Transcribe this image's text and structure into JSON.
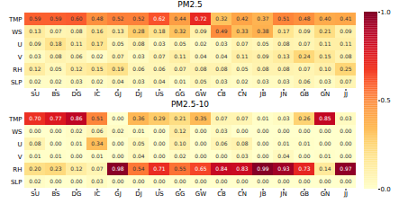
{
  "chart_data": [
    {
      "type": "heatmap",
      "title": "PM2.5",
      "x": [
        "SU",
        "BS",
        "DG",
        "IC",
        "GJ",
        "DJ",
        "US",
        "GG",
        "GW",
        "CB",
        "CN",
        "JB",
        "JN",
        "GB",
        "GN",
        "JJ"
      ],
      "y": [
        "TMP",
        "WS",
        "U",
        "V",
        "RH",
        "SLP"
      ],
      "color": "YlOrRd",
      "data_labels": true,
      "colorbar": {
        "lim": [
          0.0,
          1.0
        ],
        "ticks": [
          {
            "value": 0.0,
            "label": "0.0"
          },
          0.5,
          {
            "value": 1.0,
            "label": "1.0"
          }
        ]
      },
      "values": [
        [
          0.59,
          0.59,
          0.6,
          0.48,
          0.52,
          0.52,
          0.62,
          0.44,
          0.72,
          0.32,
          0.42,
          0.37,
          0.51,
          0.48,
          0.4,
          0.41
        ],
        [
          0.13,
          0.07,
          0.08,
          0.16,
          0.13,
          0.28,
          0.18,
          0.32,
          0.09,
          0.49,
          0.33,
          0.38,
          0.17,
          0.09,
          0.21,
          0.09
        ],
        [
          0.09,
          0.18,
          0.11,
          0.17,
          0.05,
          0.08,
          0.03,
          0.05,
          0.02,
          0.03,
          0.07,
          0.05,
          0.08,
          0.07,
          0.11,
          0.11
        ],
        [
          0.03,
          0.08,
          0.06,
          0.02,
          0.07,
          0.03,
          0.07,
          0.11,
          0.04,
          0.04,
          0.11,
          0.09,
          0.13,
          0.24,
          0.15,
          0.08
        ],
        [
          0.12,
          0.05,
          0.12,
          0.15,
          0.19,
          0.06,
          0.06,
          0.07,
          0.08,
          0.08,
          0.05,
          0.08,
          0.08,
          0.07,
          0.1,
          0.25
        ],
        [
          0.02,
          0.02,
          0.03,
          0.02,
          0.04,
          0.03,
          0.04,
          0.01,
          0.05,
          0.03,
          0.02,
          0.03,
          0.03,
          0.06,
          0.03,
          0.07
        ]
      ],
      "value_labels": [
        [
          "0.59",
          "0.59",
          "0.60",
          "0.48",
          "0.52",
          "0.52",
          "0.62",
          "0.44",
          "0.72",
          "0.32",
          "0.42",
          "0.37",
          "0.51",
          "0.48",
          "0.40",
          "0.41"
        ],
        [
          "0.13",
          "0.07",
          "0.08",
          "0.16",
          "0.13",
          "0.28",
          "0.18",
          "0.32",
          "0.09",
          "0.49",
          "0.33",
          "0.38",
          "0.17",
          "0.09",
          "0.21",
          "0.09"
        ],
        [
          "0.09",
          "0.18",
          "0.11",
          "0.17",
          "0.05",
          "0.08",
          "0.03",
          "0.05",
          "0.02",
          "0.03",
          "0.07",
          "0.05",
          "0.08",
          "0.07",
          "0.11",
          "0.11"
        ],
        [
          "0.03",
          "0.08",
          "0.06",
          "0.02",
          "0.07",
          "0.03",
          "0.07",
          "0.11",
          "0.04",
          "0.04",
          "0.11",
          "0.09",
          "0.13",
          "0.24",
          "0.15",
          "0.08"
        ],
        [
          "0.12",
          "0.05",
          "0.12",
          "0.15",
          "0.19",
          "0.06",
          "0.06",
          "0.07",
          "0.08",
          "0.08",
          "0.05",
          "0.08",
          "0.08",
          "0.07",
          "0.10",
          "0.25"
        ],
        [
          "0.02",
          "0.02",
          "0.03",
          "0.02",
          "0.04",
          "0.03",
          "0.04",
          "0.01",
          "0.05",
          "0.03",
          "0.02",
          "0.03",
          "0.03",
          "0.06",
          "0.03",
          "0.07"
        ]
      ]
    },
    {
      "type": "heatmap",
      "title": "PM2.5-10",
      "x": [
        "SU",
        "BS",
        "DG",
        "IC",
        "GJ",
        "DJ",
        "US",
        "GG",
        "GW",
        "CB",
        "CN",
        "JB",
        "JN",
        "GB",
        "GN",
        "JJ"
      ],
      "y": [
        "TMP",
        "WS",
        "U",
        "V",
        "RH",
        "SLP"
      ],
      "color": "YlOrRd",
      "data_labels": true,
      "values": [
        [
          0.7,
          0.77,
          0.86,
          0.51,
          0.0,
          0.36,
          0.29,
          0.21,
          0.35,
          0.07,
          0.07,
          0.01,
          0.03,
          0.26,
          0.85,
          0.03
        ],
        [
          0.0,
          0.0,
          0.02,
          0.06,
          0.02,
          0.01,
          0.0,
          0.12,
          0.0,
          0.03,
          0.0,
          0.0,
          0.0,
          0.0,
          0.0,
          0.0
        ],
        [
          0.08,
          0.0,
          0.01,
          0.34,
          0.0,
          0.05,
          0.0,
          0.1,
          0.0,
          0.06,
          0.08,
          0.0,
          0.01,
          0.01,
          0.0,
          0.0
        ],
        [
          0.01,
          0.01,
          0.0,
          0.01,
          0.0,
          0.04,
          0.0,
          0.02,
          0.0,
          0.0,
          0.03,
          0.0,
          0.04,
          0.0,
          0.01,
          0.0
        ],
        [
          0.2,
          0.23,
          0.12,
          0.07,
          0.98,
          0.54,
          0.71,
          0.55,
          0.65,
          0.84,
          0.83,
          0.99,
          0.93,
          0.73,
          0.14,
          0.97
        ],
        [
          0.02,
          0.0,
          0.0,
          0.03,
          0.0,
          0.0,
          0.0,
          0.0,
          0.0,
          0.0,
          0.0,
          0.0,
          0.0,
          0.0,
          0.0,
          0.0
        ]
      ],
      "value_labels": [
        [
          "0.70",
          "0.77",
          "0.86",
          "0.51",
          "0.00",
          "0.36",
          "0.29",
          "0.21",
          "0.35",
          "0.07",
          "0.07",
          "0.01",
          "0.03",
          "0.26",
          "0.85",
          "0.03"
        ],
        [
          "0.00",
          "0.00",
          "0.02",
          "0.06",
          "0.02",
          "0.01",
          "0.00",
          "0.12",
          "0.00",
          "0.03",
          "0.00",
          "0.00",
          "0.00",
          "0.00",
          "0.00",
          "0.00"
        ],
        [
          "0.08",
          "0.00",
          "0.01",
          "0.34",
          "0.00",
          "0.05",
          "0.00",
          "0.10",
          "0.00",
          "0.06",
          "0.08",
          "0.00",
          "0.01",
          "0.01",
          "0.00",
          "0.00"
        ],
        [
          "0.01",
          "0.01",
          "0.00",
          "0.01",
          "0.00",
          "0.04",
          "0.00",
          "0.02",
          "0.00",
          "0.00",
          "0.03",
          "0.00",
          "0.04",
          "0.00",
          "0.01",
          "0.00"
        ],
        [
          "0.20",
          "0.23",
          "0.12",
          "0.07",
          "0.98",
          "0.54",
          "0.71",
          "0.55",
          "0.65",
          "0.84",
          "0.83",
          "0.99",
          "0.93",
          "0.73",
          "0.14",
          "0.97"
        ],
        [
          "0.02",
          "0.00",
          "0.00",
          "0.03",
          "0.00",
          "0.00",
          "0.00",
          "0.00",
          "0.00",
          "0.00",
          "0.00",
          "0.00",
          "0.00",
          "0.00",
          "0.00",
          "0.00"
        ]
      ]
    }
  ]
}
